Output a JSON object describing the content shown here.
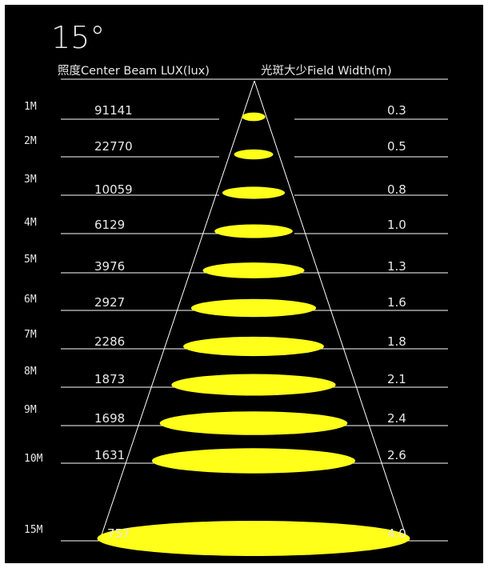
{
  "angle_label": "15°",
  "header": {
    "lux_label": "照度Center Beam LUX(lux)",
    "width_label": "光斑大少Field Width(m)"
  },
  "colors": {
    "background": "#000000",
    "beam": "#ffff1a",
    "lines": "#ffffff",
    "text": "#e8e8e8"
  },
  "rows": [
    {
      "distance": "1M",
      "lux": "91141",
      "width": "0.3",
      "width_m": 0.3
    },
    {
      "distance": "2M",
      "lux": "22770",
      "width": "0.5",
      "width_m": 0.5
    },
    {
      "distance": "3M",
      "lux": "10059",
      "width": "0.8",
      "width_m": 0.8
    },
    {
      "distance": "4M",
      "lux": "6129",
      "width": "1.0",
      "width_m": 1.0
    },
    {
      "distance": "5M",
      "lux": "3976",
      "width": "1.3",
      "width_m": 1.3
    },
    {
      "distance": "6M",
      "lux": "2927",
      "width": "1.6",
      "width_m": 1.6
    },
    {
      "distance": "7M",
      "lux": "2286",
      "width": "1.8",
      "width_m": 1.8
    },
    {
      "distance": "8M",
      "lux": "1873",
      "width": "2.1",
      "width_m": 2.1
    },
    {
      "distance": "9M",
      "lux": "1698",
      "width": "2.4",
      "width_m": 2.4
    },
    {
      "distance": "10M",
      "lux": "1631",
      "width": "2.6",
      "width_m": 2.6
    },
    {
      "distance": "15M",
      "lux": "757",
      "width": "4.0",
      "width_m": 4.0
    }
  ]
}
